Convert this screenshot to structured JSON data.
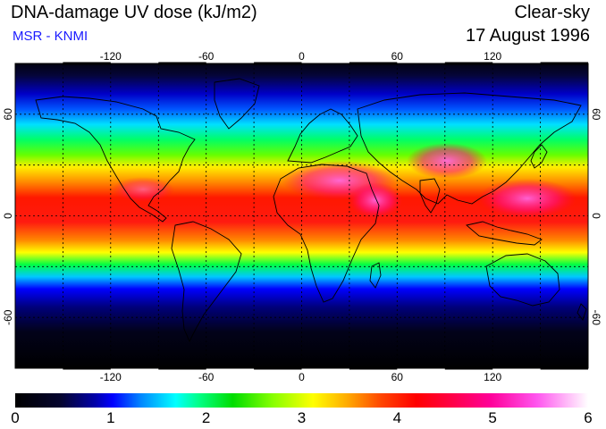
{
  "header": {
    "title": "DNA-damage UV dose (kJ/m2)",
    "subtitle": "MSR - KNMI",
    "sky_condition": "Clear-sky",
    "date": "17 August 1996"
  },
  "map": {
    "projection": "equirectangular",
    "lon_range": [
      -180,
      180
    ],
    "lat_range": [
      -90,
      90
    ],
    "lon_ticks": [
      "-120",
      "-60",
      "0",
      "60",
      "120"
    ],
    "lat_ticks": [
      "60",
      "0",
      "-60"
    ],
    "gridlines": "dashed",
    "coastlines": true,
    "colors": {
      "polar": "#000000",
      "low": "#0000ff",
      "mid_low": "#00ffff",
      "mid": "#00dd00",
      "mid_high": "#ffff00",
      "high": "#ff0000",
      "very_high": "#ff0099",
      "max": "#ffffff"
    }
  },
  "colorbar": {
    "range": [
      0,
      6
    ],
    "labels": [
      "0",
      "1",
      "2",
      "3",
      "4",
      "5",
      "6"
    ]
  }
}
